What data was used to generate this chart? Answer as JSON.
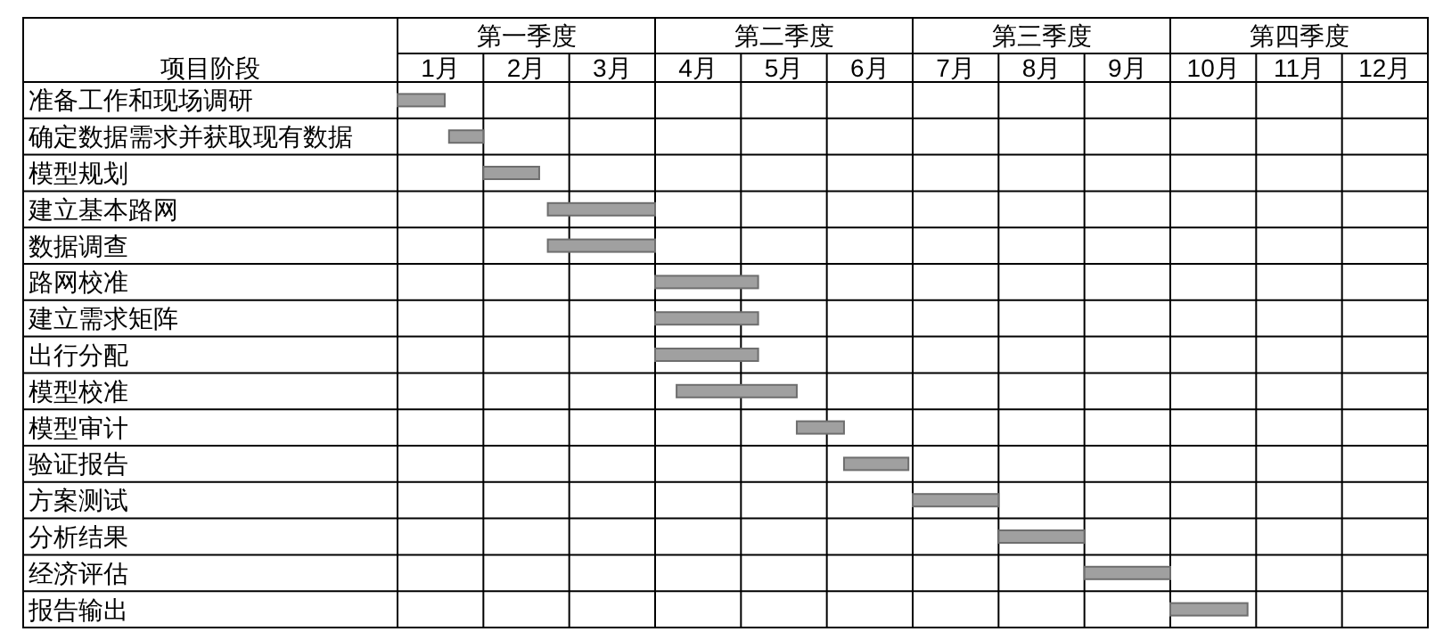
{
  "chart_data": {
    "type": "bar",
    "orientation": "horizontal",
    "ylabel": "项目阶段",
    "categories": [
      "准备工作和现场调研",
      "确定数据需求并获取现有数据",
      "模型规划",
      "建立基本路网",
      "数据调查",
      "路网校准",
      "建立需求矩阵",
      "出行分配",
      "模型校准",
      "模型审计",
      "验证报告",
      "方案测试",
      "分析结果",
      "经济评估",
      "报告输出"
    ],
    "base": [
      0,
      0.6,
      1.0,
      1.75,
      1.75,
      3,
      3,
      3,
      3.25,
      4.65,
      5.2,
      6,
      7,
      8,
      9
    ],
    "values": [
      0.55,
      0.4,
      0.65,
      1.25,
      1.25,
      1.2,
      1.2,
      1.2,
      1.4,
      0.55,
      0.75,
      1,
      1,
      1,
      0.9
    ],
    "color": "#a0a0a0",
    "xlim": [
      0,
      12
    ],
    "xticks": [
      {
        "value": 0,
        "label": null
      },
      {
        "value": 1,
        "label": null
      },
      {
        "value": 2,
        "label": null
      },
      {
        "value": 3,
        "label": null
      },
      {
        "value": 4,
        "label": null
      },
      {
        "value": 5,
        "label": null
      },
      {
        "value": 6,
        "label": null
      },
      {
        "value": 7,
        "label": null
      },
      {
        "value": 8,
        "label": null
      },
      {
        "value": 9,
        "label": null
      },
      {
        "value": 10,
        "label": null
      },
      {
        "value": 11,
        "label": null
      },
      {
        "value": 12,
        "label": null
      },
      {
        "value": 0.5,
        "label": "1月"
      },
      {
        "value": 1.5,
        "label": "2月"
      },
      {
        "value": 2.5,
        "label": "3月"
      },
      {
        "value": 3.5,
        "label": "4月"
      },
      {
        "value": 4.5,
        "label": "5月"
      },
      {
        "value": 5.5,
        "label": "6月"
      },
      {
        "value": 6.5,
        "label": "7月"
      },
      {
        "value": 7.5,
        "label": "8月"
      },
      {
        "value": 8.5,
        "label": "9月"
      },
      {
        "value": 9.5,
        "label": "10月"
      },
      {
        "value": 10.5,
        "label": "11月"
      },
      {
        "value": 11.5,
        "label": "12月"
      }
    ],
    "annotations": [
      "第一季度",
      "第二季度",
      "第三季度",
      "第四季度"
    ],
    "grid": true
  }
}
